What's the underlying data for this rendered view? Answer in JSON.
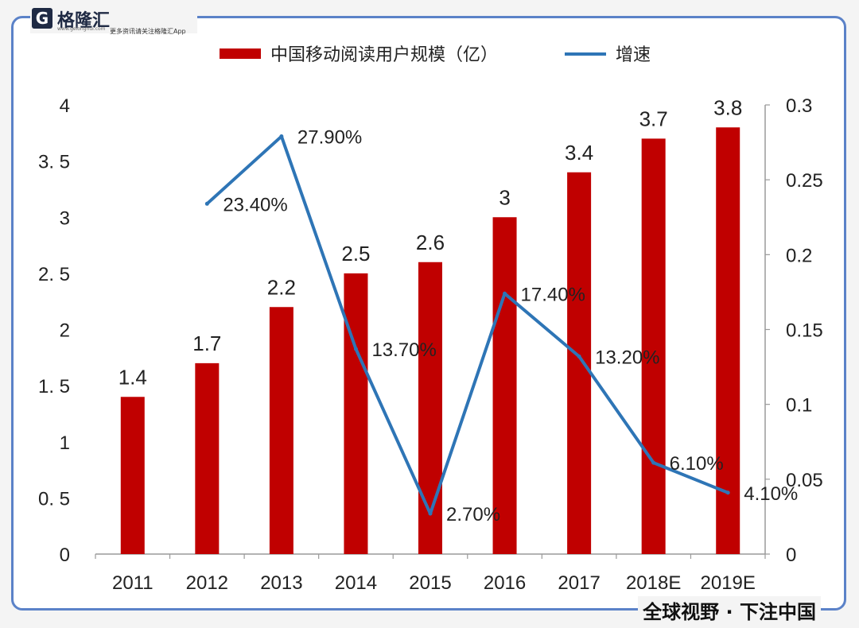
{
  "brand": {
    "name": "格隆汇",
    "site": "www.gelonghui.com",
    "slogan": "更多资讯请关注格隆汇App"
  },
  "footer": {
    "tagline": "全球视野 · 下注中国"
  },
  "colors": {
    "bar": "#c00000",
    "line": "#2e75b6",
    "frame": "#5b82c8"
  },
  "chart_data": {
    "type": "bar",
    "categories": [
      "2011",
      "2012",
      "2013",
      "2014",
      "2015",
      "2016",
      "2017",
      "2018E",
      "2019E"
    ],
    "series": [
      {
        "name": "中国移动阅读用户规模（亿）",
        "type": "bar",
        "axis": "left",
        "values": [
          1.4,
          1.7,
          2.2,
          2.5,
          2.6,
          3,
          3.4,
          3.7,
          3.8
        ],
        "labels": [
          "1.4",
          "1.7",
          "2.2",
          "2.5",
          "2.6",
          "3",
          "3.4",
          "3.7",
          "3.8"
        ]
      },
      {
        "name": "增速",
        "type": "line",
        "axis": "right",
        "values": [
          null,
          0.234,
          0.279,
          0.137,
          0.027,
          0.174,
          0.132,
          0.061,
          0.041
        ],
        "labels": [
          "",
          "23.40%",
          "27.90%",
          "13.70%",
          "2.70%",
          "17.40%",
          "13.20%",
          "6.10%",
          "4.10%"
        ]
      }
    ],
    "yleft": {
      "lim": [
        0,
        4
      ],
      "ticks": [
        0,
        0.5,
        1,
        1.5,
        2,
        2.5,
        3,
        3.5,
        4
      ],
      "tick_labels": [
        "0",
        "0. 5",
        "1",
        "1. 5",
        "2",
        "2. 5",
        "3",
        "3. 5",
        "4"
      ]
    },
    "yright": {
      "lim": [
        0,
        0.3
      ],
      "ticks": [
        0,
        0.05,
        0.1,
        0.15,
        0.2,
        0.25,
        0.3
      ],
      "tick_labels": [
        "0",
        "0.05",
        "0.1",
        "0.15",
        "0.2",
        "0.25",
        "0.3"
      ]
    },
    "legend": "top",
    "grid": false
  }
}
